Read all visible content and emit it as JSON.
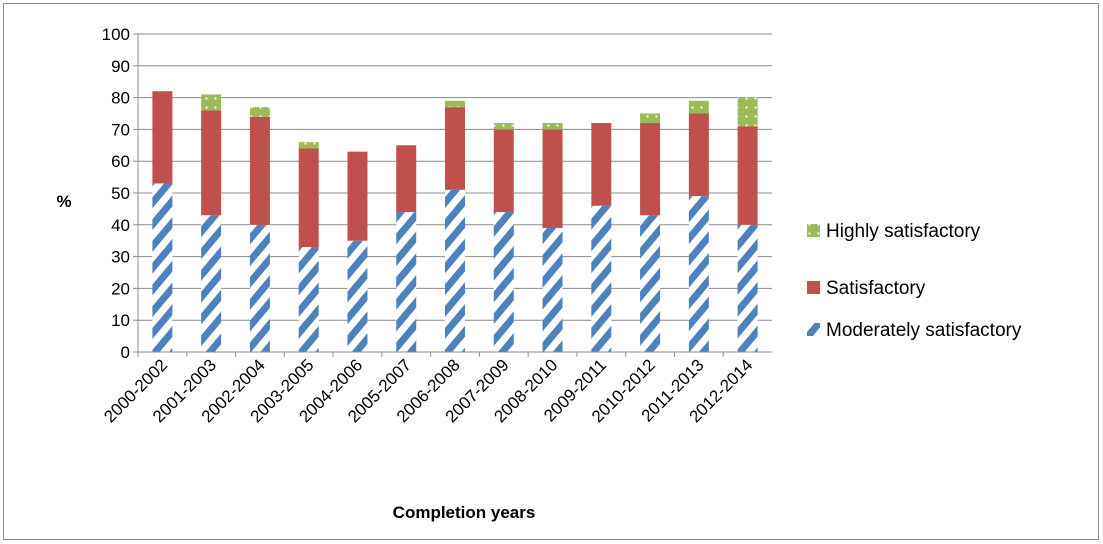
{
  "chart_data": {
    "type": "bar",
    "stacked": true,
    "title": "",
    "xlabel": "Completion years",
    "ylabel": "%",
    "ylim": [
      0,
      100
    ],
    "yticks": [
      0,
      10,
      20,
      30,
      40,
      50,
      60,
      70,
      80,
      90,
      100
    ],
    "grid": true,
    "legend_position": "right",
    "categories": [
      "2000-2002",
      "2001-2003",
      "2002-2004",
      "2003-2005",
      "2004-2006",
      "2005-2007",
      "2006-2008",
      "2007-2009",
      "2008-2010",
      "2009-2011",
      "2010-2012",
      "2011-2013",
      "2012-2014"
    ],
    "series": [
      {
        "name": "Moderately satisfactory",
        "values": [
          53,
          43,
          40,
          33,
          35,
          44,
          51,
          44,
          39,
          46,
          43,
          49,
          40
        ],
        "color": "#4f81bd",
        "pattern": "diagonal-stripes"
      },
      {
        "name": "Satisfactory",
        "values": [
          29,
          33,
          34,
          31,
          28,
          21,
          26,
          26,
          31,
          26,
          29,
          26,
          31
        ],
        "color": "#c0504d",
        "pattern": "solid"
      },
      {
        "name": "Highly satisfactory",
        "values": [
          0,
          5,
          3,
          2,
          0,
          0,
          2,
          2,
          2,
          0,
          3,
          4,
          9
        ],
        "color": "#9bbb59",
        "pattern": "dotted"
      }
    ]
  }
}
